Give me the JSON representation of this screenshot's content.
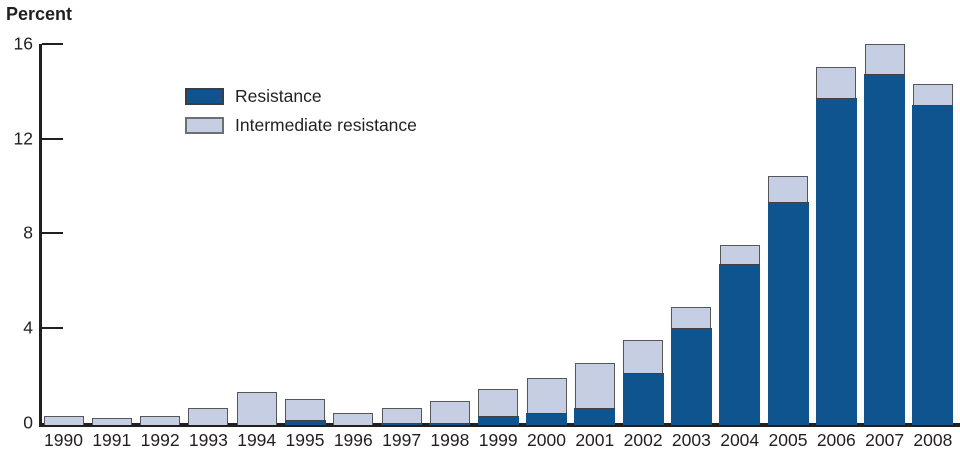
{
  "title": "Percent",
  "colors": {
    "resistance_fill": "#0f548e",
    "resistance_border": "#3b3d40",
    "intermediate_fill": "#c6cee4",
    "intermediate_border": "#6d6e71",
    "axis": "#231f20",
    "bar_outline": "#55565a",
    "segment_divider": "#3f4145"
  },
  "legend": [
    {
      "label": "Resistance",
      "swatch": "resistance-swatch"
    },
    {
      "label": "Intermediate resistance",
      "swatch": "intermediate-swatch"
    }
  ],
  "chart_data": {
    "type": "bar",
    "stacked": true,
    "title": "Percent",
    "xlabel": "",
    "ylabel": "Percent",
    "categories": [
      "1990",
      "1991",
      "1992",
      "1993",
      "1994",
      "1995",
      "1996",
      "1997",
      "1998",
      "1999",
      "2000",
      "2001",
      "2002",
      "2003",
      "2004",
      "2005",
      "2006",
      "2007",
      "2008"
    ],
    "series": [
      {
        "name": "Resistance",
        "values": [
          0.0,
          0.0,
          0.0,
          0.0,
          0.0,
          0.2,
          0.0,
          0.1,
          0.1,
          0.4,
          0.5,
          0.7,
          2.2,
          4.1,
          6.8,
          9.4,
          13.8,
          14.8,
          13.5
        ]
      },
      {
        "name": "Intermediate resistance",
        "values": [
          0.4,
          0.3,
          0.4,
          0.7,
          1.4,
          0.9,
          0.5,
          0.6,
          0.9,
          1.1,
          1.5,
          1.9,
          1.4,
          0.9,
          0.8,
          1.1,
          1.3,
          1.3,
          0.9
        ]
      }
    ],
    "totals": [
      0.4,
      0.3,
      0.4,
      0.7,
      1.4,
      1.1,
      0.5,
      0.7,
      1.0,
      1.5,
      2.0,
      2.6,
      3.6,
      5.0,
      7.6,
      10.5,
      15.1,
      16.1,
      14.4
    ],
    "yticks": [
      0,
      4,
      8,
      12,
      16
    ],
    "ylim": [
      0,
      16.5
    ],
    "grid": false,
    "legend_position": "upper-left-inside"
  }
}
